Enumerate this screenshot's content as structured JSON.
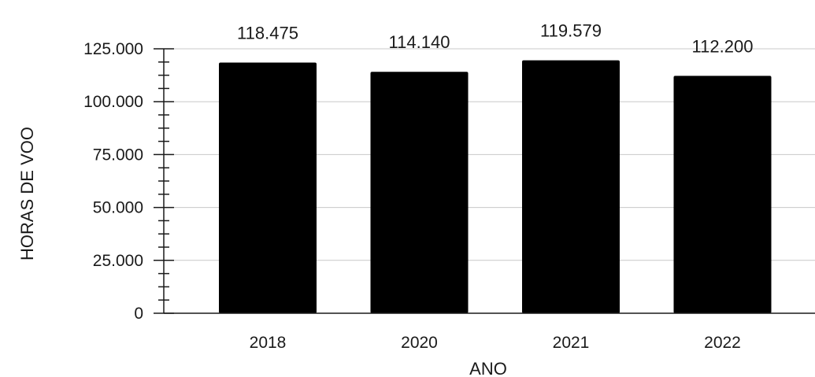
{
  "chart_data": {
    "type": "bar",
    "title": "",
    "xlabel": "ANO",
    "ylabel": "HORAS DE VOO",
    "categories": [
      "2018",
      "2020",
      "2021",
      "2022"
    ],
    "values": [
      118475,
      114140,
      119579,
      112200
    ],
    "value_labels": [
      "118.475",
      "114.140",
      "119.579",
      "112.200"
    ],
    "ylim": [
      0,
      125000
    ],
    "yticks": [
      0,
      25000,
      50000,
      75000,
      100000,
      125000
    ],
    "ytick_labels": [
      "0",
      "25.000",
      "50.000",
      "75.000",
      "100.000",
      "125.000"
    ],
    "grid": true,
    "legend": "none",
    "bar_color": "#000000",
    "grid_color": "#c8c8c8"
  }
}
